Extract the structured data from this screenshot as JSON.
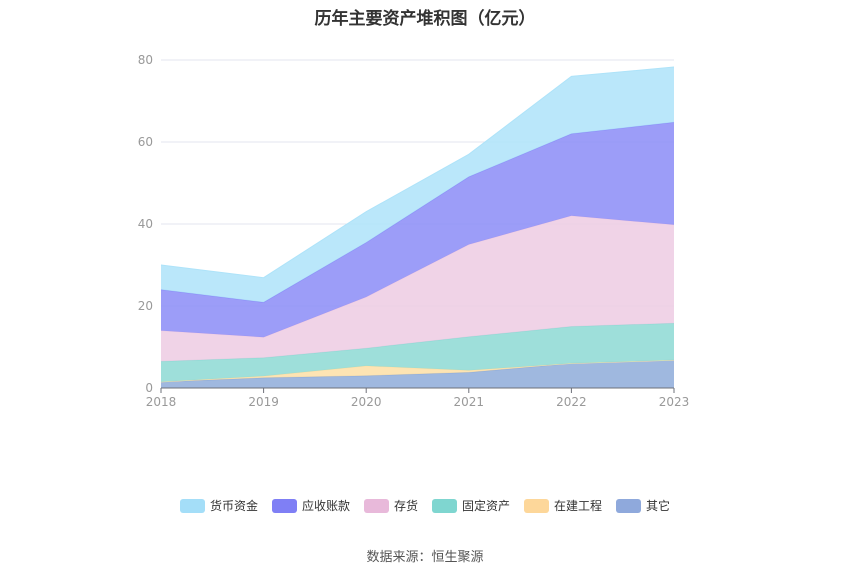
{
  "chart_data": {
    "type": "area",
    "stacked": true,
    "title": "历年主要资产堆积图（亿元）",
    "xlabel": "",
    "ylabel": "",
    "categories": [
      "2018",
      "2019",
      "2020",
      "2021",
      "2022",
      "2023"
    ],
    "ylim": [
      0,
      80
    ],
    "yticks": [
      0,
      20,
      40,
      60,
      80
    ],
    "grid": true,
    "legend_position": "bottom",
    "series": [
      {
        "name": "其它",
        "color": "#8eabd9",
        "values": [
          1.5,
          2.5,
          3.0,
          3.8,
          6.0,
          6.8
        ]
      },
      {
        "name": "在建工程",
        "color": "#fddfa6",
        "values": [
          0.0,
          0.4,
          2.4,
          0.5,
          0.0,
          0.0
        ]
      },
      {
        "name": "固定资产",
        "color": "#8dd9d4",
        "values": [
          5.0,
          4.5,
          4.3,
          8.2,
          9.0,
          9.0
        ]
      },
      {
        "name": "存货",
        "color": "#edcbe3",
        "values": [
          7.5,
          5.0,
          12.5,
          22.5,
          27.0,
          24.0
        ]
      },
      {
        "name": "应收账款",
        "color": "#8b8cf7",
        "values": [
          10.0,
          8.5,
          13.3,
          16.5,
          20.0,
          25.0
        ]
      },
      {
        "name": "货币资金",
        "color": "#aee3f9",
        "values": [
          6.0,
          6.0,
          7.5,
          5.5,
          14.0,
          13.5
        ]
      }
    ]
  },
  "legend": [
    {
      "name": "货币资金",
      "color": "#a4def8"
    },
    {
      "name": "应收账款",
      "color": "#7f7ff5"
    },
    {
      "name": "存货",
      "color": "#e8b9da"
    },
    {
      "name": "固定资产",
      "color": "#7fd6d0"
    },
    {
      "name": "在建工程",
      "color": "#fdd79a"
    },
    {
      "name": "其它",
      "color": "#8fa9dc"
    }
  ],
  "source": "数据来源：恒生聚源"
}
